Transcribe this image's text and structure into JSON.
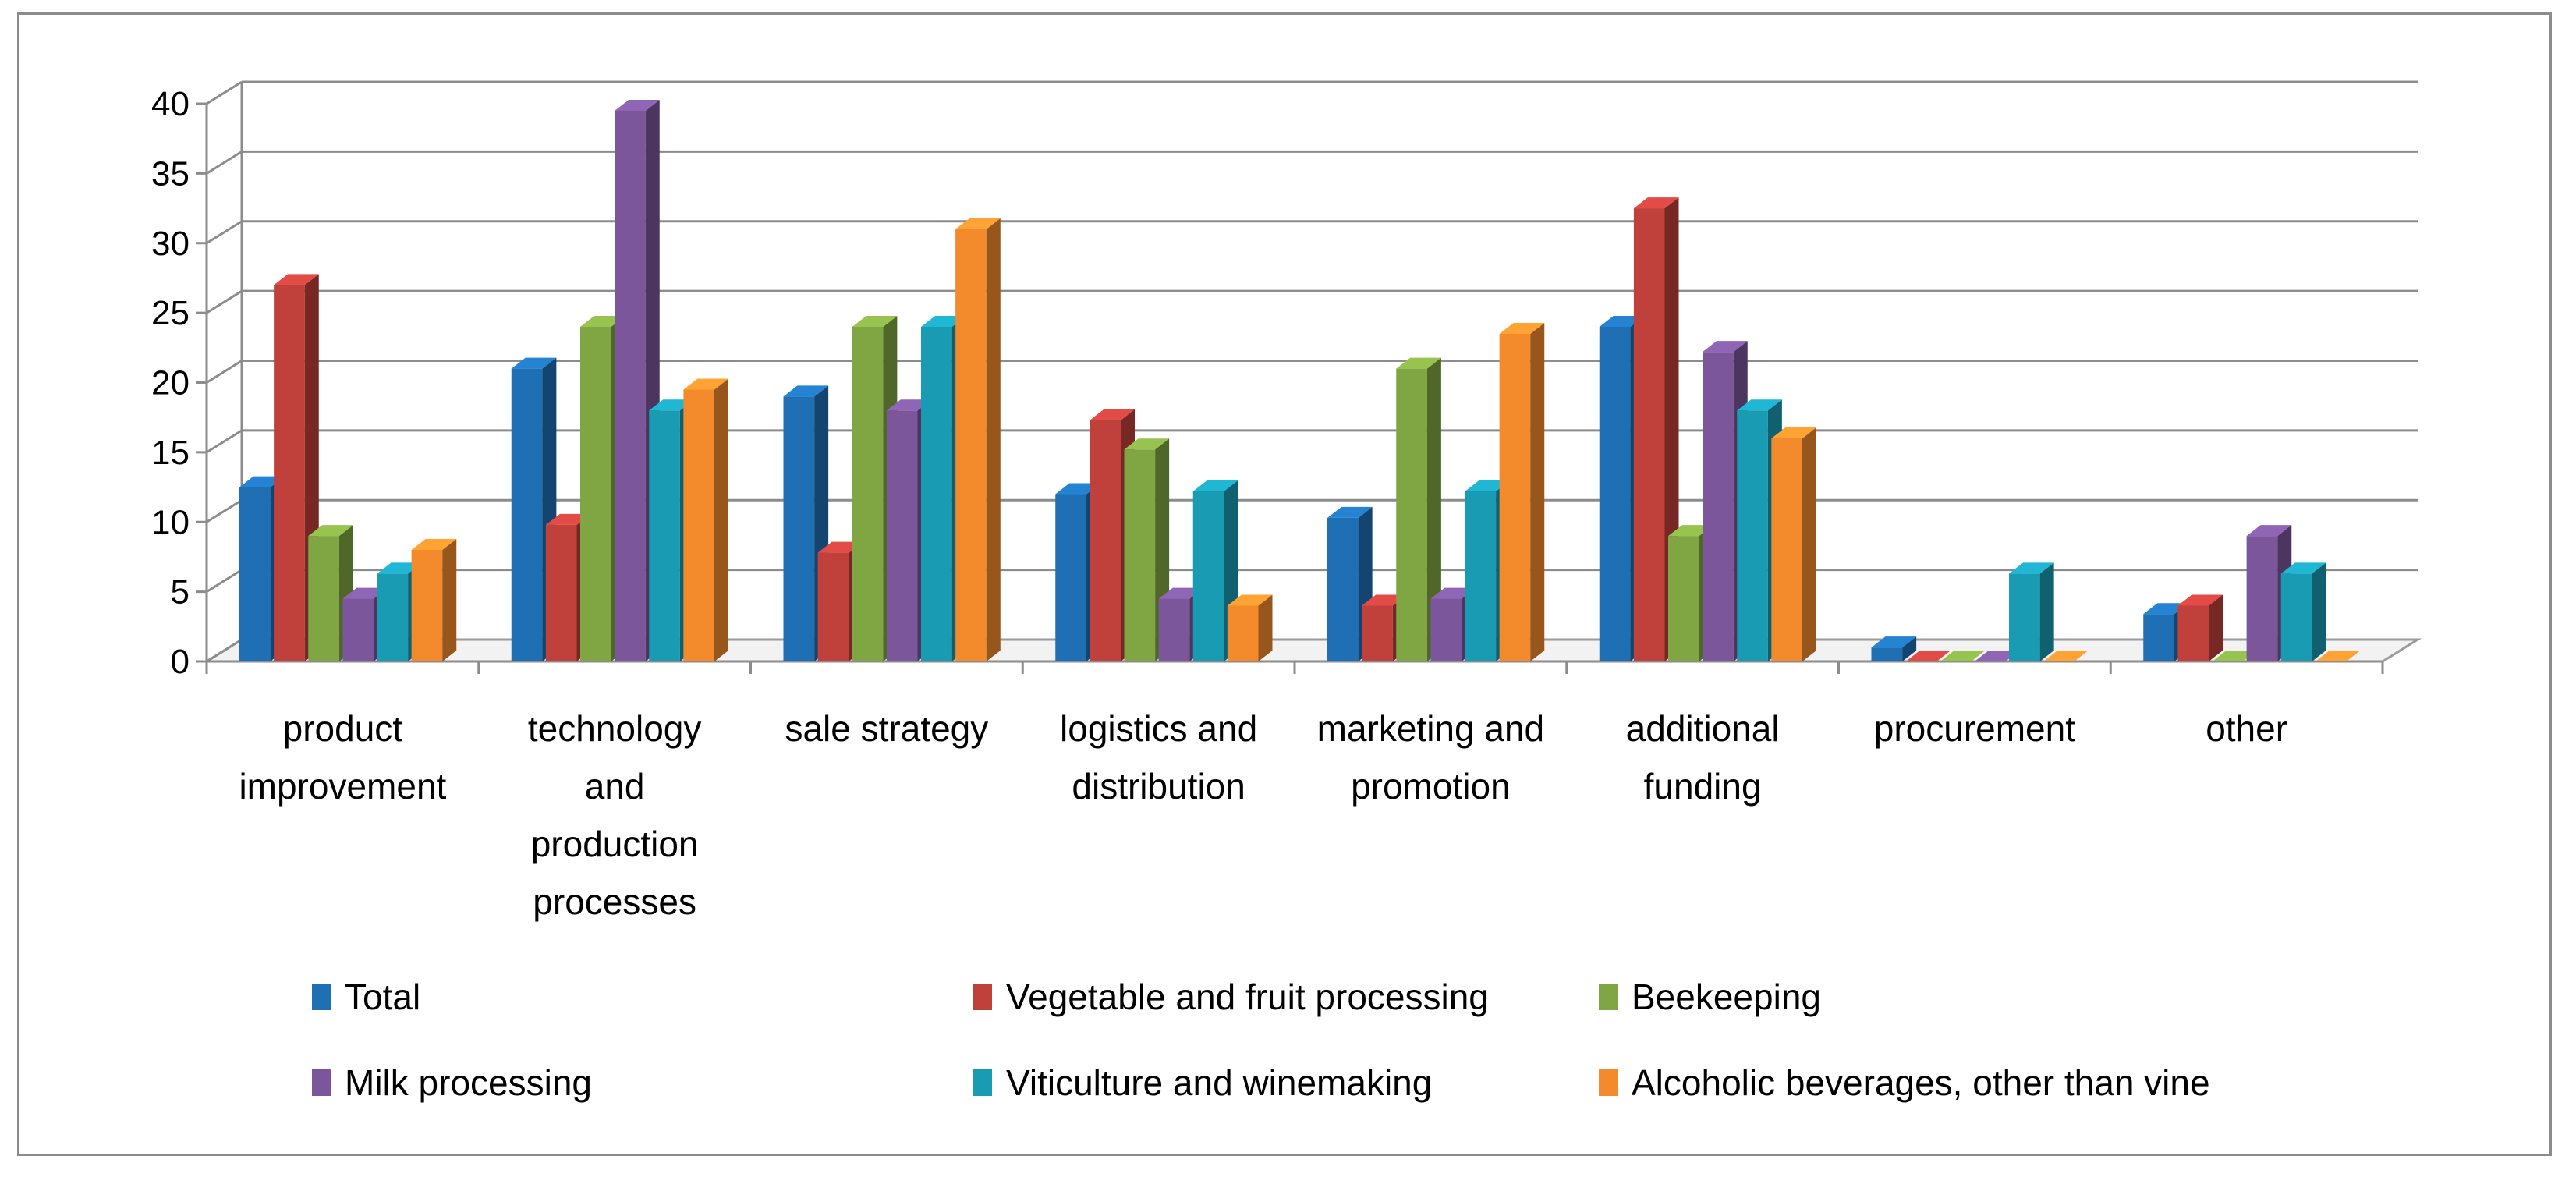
{
  "chart_data": {
    "type": "bar",
    "title": "",
    "xlabel": "",
    "ylabel": "",
    "ylim": [
      0,
      40
    ],
    "yticks": [
      0,
      5,
      10,
      15,
      20,
      25,
      30,
      35,
      40
    ],
    "grid": true,
    "legend_position": "bottom",
    "categories": [
      [
        "product",
        "improvement"
      ],
      [
        "technology",
        "and",
        "production",
        "processes"
      ],
      [
        "sale strategy"
      ],
      [
        "logistics and",
        "distribution"
      ],
      [
        "marketing and",
        "promotion"
      ],
      [
        "additional",
        "funding"
      ],
      [
        "procurement"
      ],
      [
        "other"
      ]
    ],
    "series": [
      {
        "name": "Total",
        "color": "#1f6fb4",
        "values": [
          12.5,
          21,
          19,
          12,
          10.3,
          24,
          1,
          3.4
        ]
      },
      {
        "name": "Vegetable and fruit processing",
        "color": "#c0403b",
        "values": [
          27,
          9.8,
          7.8,
          17.3,
          4,
          32.5,
          0,
          4
        ]
      },
      {
        "name": "Beekeeping",
        "color": "#7fa642",
        "values": [
          9,
          24,
          24,
          15.2,
          21,
          9,
          0,
          0
        ]
      },
      {
        "name": "Milk processing",
        "color": "#7b569a",
        "values": [
          4.5,
          39.5,
          18,
          4.5,
          4.5,
          22.2,
          0,
          9
        ]
      },
      {
        "name": "Viticulture and winemaking",
        "color": "#1a9bb4",
        "values": [
          6.3,
          18,
          24,
          12.2,
          12.2,
          18,
          6.3,
          6.3
        ]
      },
      {
        "name": "Alcoholic beverages, other than vine",
        "color": "#f38a2c",
        "values": [
          8,
          19.5,
          31,
          4,
          23.5,
          16,
          0,
          0
        ]
      }
    ]
  }
}
